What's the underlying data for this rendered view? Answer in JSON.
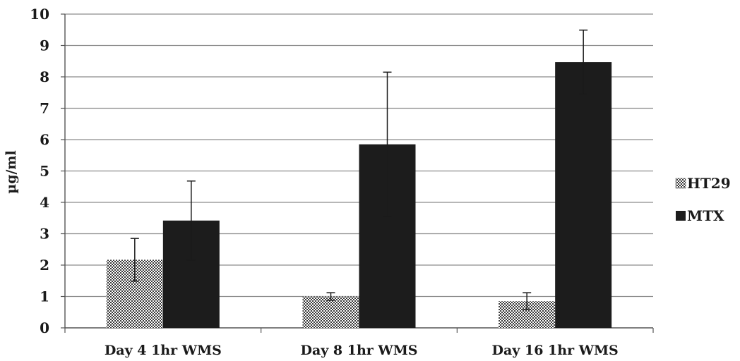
{
  "chart_data": {
    "type": "bar",
    "ylabel": "µg/ml",
    "xlabel": "",
    "ylim": [
      0,
      10
    ],
    "yticks": [
      0,
      1,
      2,
      3,
      4,
      5,
      6,
      7,
      8,
      9,
      10
    ],
    "grid": true,
    "legend_position": "right",
    "categories": [
      "Day 4 1hr WMS",
      "Day 8 1hr WMS",
      "Day 16 1hr WMS"
    ],
    "series": [
      {
        "name": "HT29",
        "values": [
          2.17,
          1.0,
          0.85
        ],
        "errors": [
          0.68,
          0.12,
          0.27
        ],
        "fill": "checkered",
        "color": "#555555"
      },
      {
        "name": "MTX",
        "values": [
          3.42,
          5.85,
          8.47
        ],
        "errors": [
          1.26,
          2.3,
          1.02
        ],
        "fill": "solid",
        "color": "#1c1c1c"
      }
    ]
  }
}
